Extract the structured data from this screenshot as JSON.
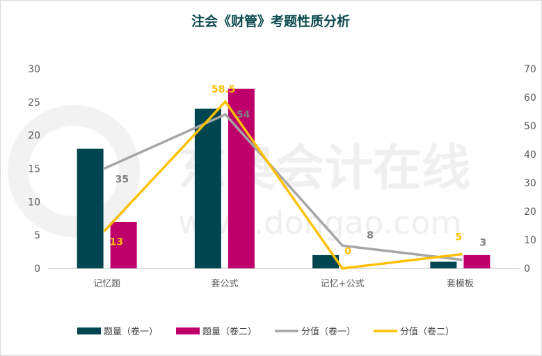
{
  "chart_data": {
    "type": "bar",
    "title": "注会《财管》考题性质分析",
    "categories": [
      "记忆题",
      "套公式",
      "记忆+公式",
      "套模板"
    ],
    "left_axis": {
      "ylim": [
        0,
        30
      ],
      "ticks": [
        0,
        5,
        10,
        15,
        20,
        25,
        30
      ]
    },
    "right_axis": {
      "ylim": [
        0,
        70
      ],
      "ticks": [
        0,
        10,
        20,
        30,
        40,
        50,
        60,
        70
      ]
    },
    "series": [
      {
        "name": "题量（卷一）",
        "type": "bar",
        "axis": "left",
        "color": "#004650",
        "values": [
          18,
          24,
          2,
          1
        ]
      },
      {
        "name": "题量（卷二）",
        "type": "bar",
        "axis": "left",
        "color": "#c0006a",
        "values": [
          7,
          27,
          0,
          2
        ]
      },
      {
        "name": "分值（卷一）",
        "type": "line",
        "axis": "right",
        "color": "#a6a6a6",
        "values": [
          35,
          54,
          8,
          3
        ],
        "labels": [
          "35",
          "54",
          "8",
          "3"
        ]
      },
      {
        "name": "分值（卷二）",
        "type": "line",
        "axis": "right",
        "color": "#ffc000",
        "values": [
          13,
          58.5,
          0,
          5
        ],
        "labels": [
          "13",
          "58.5",
          "0",
          "5"
        ]
      }
    ],
    "legend": "bottom",
    "grid": false,
    "watermark": "东奥会计在线 www.dongao.com"
  }
}
